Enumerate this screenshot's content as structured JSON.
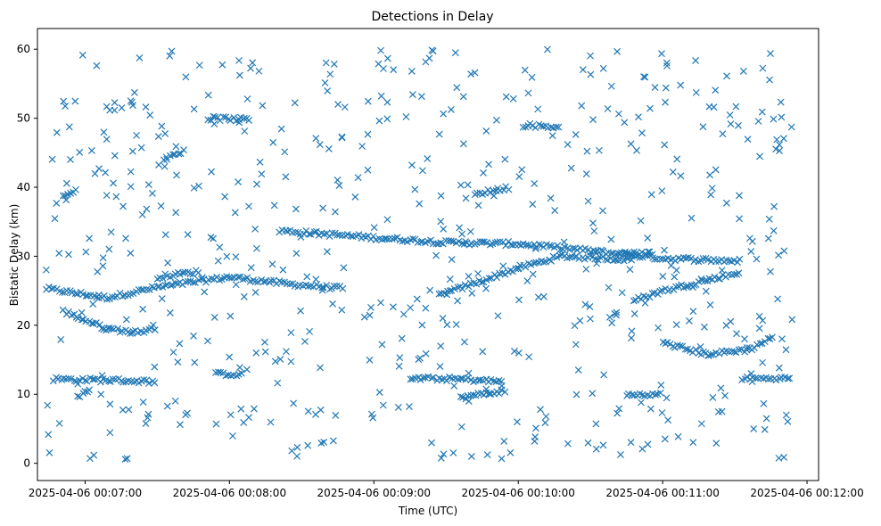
{
  "chart_data": {
    "type": "scatter",
    "title": "Detections in Delay",
    "xlabel": "Time (UTC)",
    "ylabel": "Bistatic Delay (km)",
    "xlim": [
      -0.33,
      5.08
    ],
    "ylim": [
      -2.5,
      63
    ],
    "x_unit": "minutes after 2025-04-06 00:07:00",
    "marker": "x",
    "color": "#1f77b4",
    "xticks": [
      {
        "value": 0,
        "label": "2025-04-06 00:07:00"
      },
      {
        "value": 1,
        "label": "2025-04-06 00:08:00"
      },
      {
        "value": 2,
        "label": "2025-04-06 00:09:00"
      },
      {
        "value": 3,
        "label": "2025-04-06 00:10:00"
      },
      {
        "value": 4,
        "label": "2025-04-06 00:11:00"
      },
      {
        "value": 5,
        "label": "2025-04-06 00:12:00"
      }
    ],
    "yticks": [
      {
        "value": 0,
        "label": "0"
      },
      {
        "value": 10,
        "label": "10"
      },
      {
        "value": 20,
        "label": "20"
      },
      {
        "value": 30,
        "label": "30"
      },
      {
        "value": 40,
        "label": "40"
      },
      {
        "value": 50,
        "label": "50"
      },
      {
        "value": 60,
        "label": "60"
      }
    ],
    "series": [
      {
        "name": "detections",
        "x_start": -0.27,
        "x_end": 4.92,
        "noise_points": 560,
        "noise_y_range": [
          0.5,
          60
        ],
        "tracks": [
          {
            "points": [
              [
                -0.27,
                25.3
              ],
              [
                0.15,
                24.0
              ],
              [
                0.5,
                25.5
              ],
              [
                1.0,
                27.0
              ],
              [
                1.4,
                26.0
              ],
              [
                1.8,
                25.3
              ]
            ],
            "spread": 0.3
          },
          {
            "points": [
              [
                2.45,
                24.3
              ],
              [
                2.8,
                26.8
              ],
              [
                3.0,
                28.3
              ],
              [
                3.3,
                30.0
              ],
              [
                3.8,
                29.5
              ]
            ],
            "spread": 0.3
          },
          {
            "points": [
              [
                1.35,
                33.7
              ],
              [
                2.0,
                32.7
              ],
              [
                2.5,
                32.0
              ],
              [
                3.0,
                31.8
              ],
              [
                3.5,
                30.8
              ],
              [
                4.0,
                29.7
              ],
              [
                4.55,
                29.3
              ]
            ],
            "spread": 0.3
          },
          {
            "points": [
              [
                3.8,
                23.5
              ],
              [
                4.0,
                25.0
              ],
              [
                4.2,
                26.0
              ],
              [
                4.4,
                27.0
              ],
              [
                4.55,
                27.7
              ]
            ],
            "spread": 0.3
          },
          {
            "points": [
              [
                -0.22,
                12.2
              ],
              [
                0.25,
                12.0
              ],
              [
                0.5,
                11.8
              ]
            ],
            "spread": 0.3
          },
          {
            "points": [
              [
                0.9,
                13.0
              ],
              [
                1.1,
                12.8
              ]
            ],
            "spread": 0.25
          },
          {
            "points": [
              [
                2.25,
                12.3
              ],
              [
                2.6,
                12.2
              ],
              [
                2.9,
                11.8
              ]
            ],
            "spread": 0.3
          },
          {
            "points": [
              [
                4.55,
                12.3
              ],
              [
                4.9,
                12.3
              ]
            ],
            "spread": 0.25
          },
          {
            "points": [
              [
                4.0,
                17.5
              ],
              [
                4.3,
                15.8
              ],
              [
                4.6,
                16.5
              ],
              [
                4.78,
                18.5
              ]
            ],
            "spread": 0.3
          },
          {
            "points": [
              [
                -0.15,
                22.0
              ],
              [
                0.15,
                19.5
              ],
              [
                0.35,
                19.0
              ],
              [
                0.5,
                19.5
              ]
            ],
            "spread": 0.3
          },
          {
            "points": [
              [
                0.5,
                27.0
              ],
              [
                0.8,
                27.8
              ]
            ],
            "spread": 0.3
          },
          {
            "points": [
              [
                3.7,
                30.5
              ],
              [
                3.95,
                30.5
              ]
            ],
            "spread": 0.25
          },
          {
            "points": [
              [
                3.05,
                49.0
              ],
              [
                3.3,
                48.7
              ]
            ],
            "spread": 0.3
          },
          {
            "points": [
              [
                0.85,
                50.0
              ],
              [
                1.15,
                49.8
              ]
            ],
            "spread": 0.3
          },
          {
            "points": [
              [
                -0.15,
                38.5
              ],
              [
                -0.05,
                40.0
              ]
            ],
            "spread": 0.3
          },
          {
            "points": [
              [
                2.7,
                39.0
              ],
              [
                2.95,
                40.0
              ]
            ],
            "spread": 0.3
          },
          {
            "points": [
              [
                3.75,
                10.0
              ],
              [
                4.0,
                10.0
              ]
            ],
            "spread": 0.25
          },
          {
            "points": [
              [
                2.6,
                9.5
              ],
              [
                2.9,
                10.5
              ]
            ],
            "spread": 0.3
          },
          {
            "points": [
              [
                -0.05,
                9.5
              ],
              [
                0.05,
                11.0
              ]
            ],
            "spread": 0.3
          },
          {
            "points": [
              [
                0.55,
                44.0
              ],
              [
                0.7,
                45.5
              ]
            ],
            "spread": 0.3
          }
        ]
      }
    ]
  }
}
